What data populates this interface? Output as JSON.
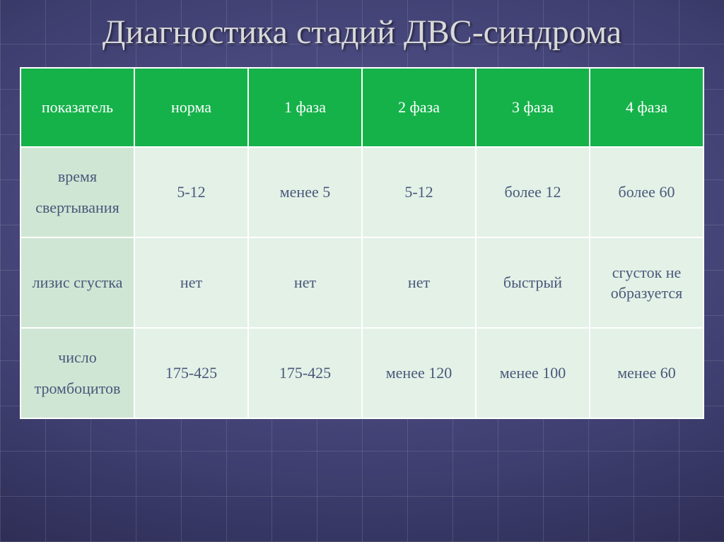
{
  "slide": {
    "title": "Диагностика стадий ДВС-синдрома",
    "title_color": "#d9d9d9",
    "title_fontsize": 48
  },
  "table": {
    "type": "table",
    "header_bg": "#15b24a",
    "header_text_color": "#ffffff",
    "rowlabel_bg": "#cfe6d4",
    "cell_bg": "#e3f1e7",
    "cell_text_color": "#4a587a",
    "border_color": "#ffffff",
    "cell_fontsize": 22,
    "columns": [
      "показатель",
      "норма",
      "1 фаза",
      "2 фаза",
      "3 фаза",
      "4 фаза"
    ],
    "rows": [
      {
        "label": "время свертывания",
        "cells": [
          "5-12",
          "менее 5",
          "5-12",
          "более 12",
          "более 60"
        ]
      },
      {
        "label": "лизис сгустка",
        "cells": [
          "нет",
          "нет",
          "нет",
          "быстрый",
          "сгусток не образуется"
        ]
      },
      {
        "label": "число тромбоцитов",
        "cells": [
          "175-425",
          "175-425",
          "менее 120",
          "менее 100",
          "менее 60"
        ]
      }
    ]
  }
}
